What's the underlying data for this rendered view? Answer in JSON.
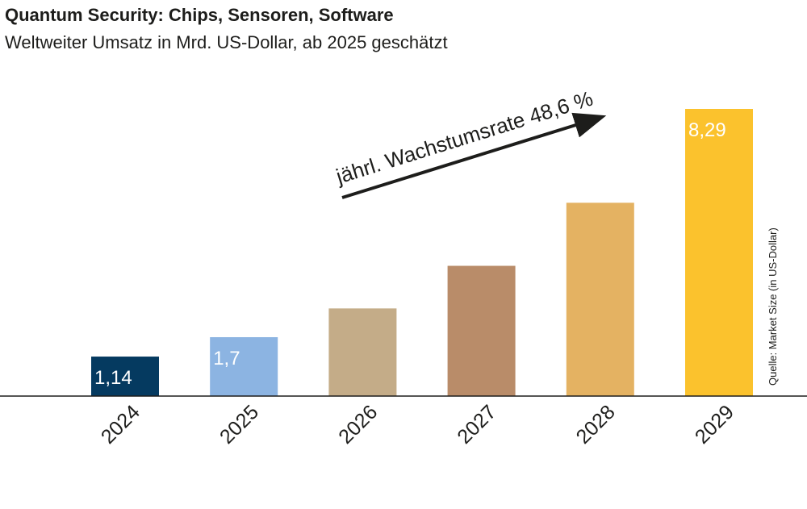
{
  "chart_data": {
    "type": "bar",
    "title": "Quantum Security: Chips, Sensoren, Software",
    "subtitle": "Weltweiter Umsatz in Mrd. US-Dollar, ab 2025 geschätzt",
    "categories": [
      "2024",
      "2025",
      "2026",
      "2027",
      "2028",
      "2029"
    ],
    "values": [
      1.14,
      1.7,
      2.53,
      3.76,
      5.58,
      8.29
    ],
    "value_labels": [
      "1,14",
      "1,7",
      "",
      "",
      "",
      "8,29"
    ],
    "colors": [
      "#053a60",
      "#8cb4e2",
      "#c4ac88",
      "#b98c69",
      "#e4b262",
      "#fbc22d"
    ],
    "annotation": "jährl. Wachstumsrate 48,6 %",
    "source": "Quelle: Market Size (in US-Dollar)",
    "xlabel": "",
    "ylabel": "",
    "ylim": [
      0,
      8.29
    ],
    "grid": false,
    "legend": "none"
  }
}
